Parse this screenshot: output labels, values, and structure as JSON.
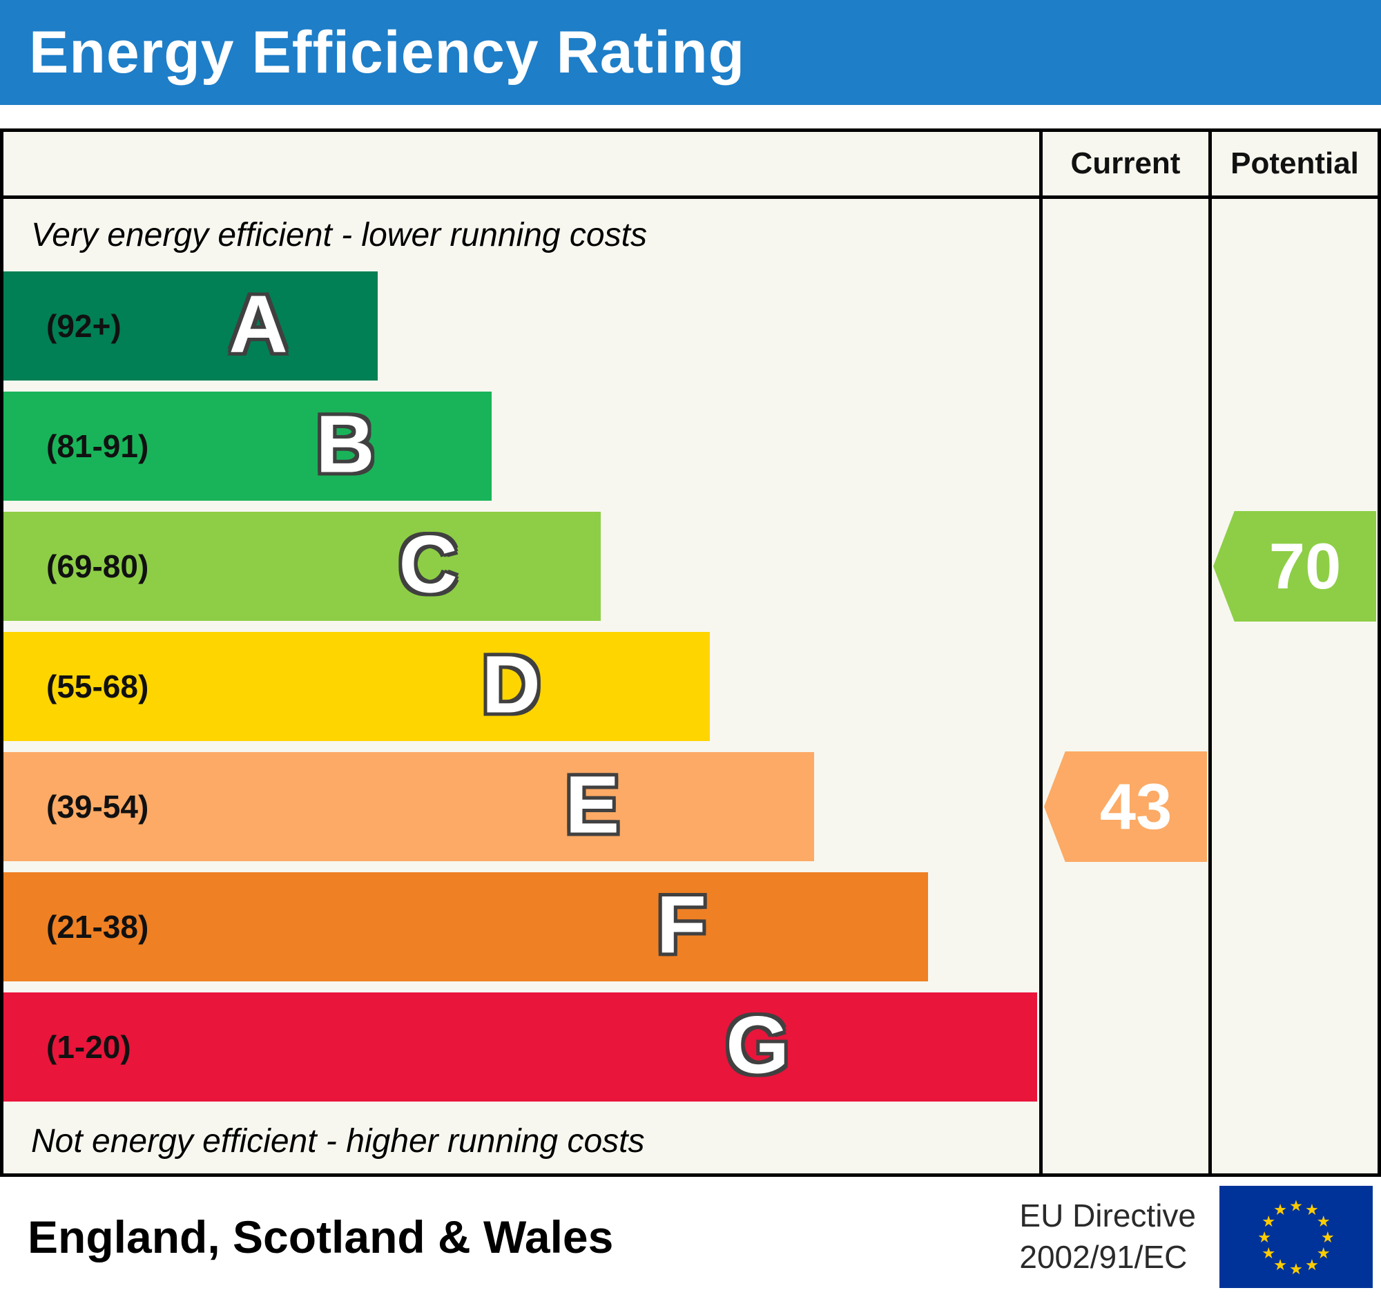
{
  "title": "Energy Efficiency Rating",
  "columns": {
    "current": "Current",
    "potential": "Potential"
  },
  "top_note": "Very energy efficient - lower running costs",
  "bottom_note": "Not energy efficient - higher running costs",
  "footer": {
    "region": "England, Scotland & Wales",
    "directive": [
      "EU Directive",
      "2002/91/EC"
    ],
    "flag_icon": "eu-flag"
  },
  "chart_data": {
    "type": "bar",
    "title": "Energy Efficiency Rating",
    "top_label": "Very energy efficient - lower running costs",
    "bottom_label": "Not energy efficient - higher running costs",
    "columns": [
      "Current",
      "Potential"
    ],
    "bands": [
      {
        "letter": "A",
        "label": "(92+)",
        "min": 92,
        "max": 100,
        "color": "#008054",
        "width_pct": 36
      },
      {
        "letter": "B",
        "label": "(81-91)",
        "min": 81,
        "max": 91,
        "color": "#19b459",
        "width_pct": 47
      },
      {
        "letter": "C",
        "label": "(69-80)",
        "min": 69,
        "max": 80,
        "color": "#8dce46",
        "width_pct": 57.5
      },
      {
        "letter": "D",
        "label": "(55-68)",
        "min": 55,
        "max": 68,
        "color": "#ffd500",
        "width_pct": 68
      },
      {
        "letter": "E",
        "label": "(39-54)",
        "min": 39,
        "max": 54,
        "color": "#fcaa65",
        "width_pct": 78
      },
      {
        "letter": "F",
        "label": "(21-38)",
        "min": 21,
        "max": 38,
        "color": "#ef8023",
        "width_pct": 89
      },
      {
        "letter": "G",
        "label": "(1-20)",
        "min": 1,
        "max": 20,
        "color": "#e9153b",
        "width_pct": 99.5
      }
    ],
    "current": {
      "value": 43,
      "band": "E",
      "color": "#fcaa65"
    },
    "potential": {
      "value": 70,
      "band": "C",
      "color": "#8dce46"
    }
  }
}
